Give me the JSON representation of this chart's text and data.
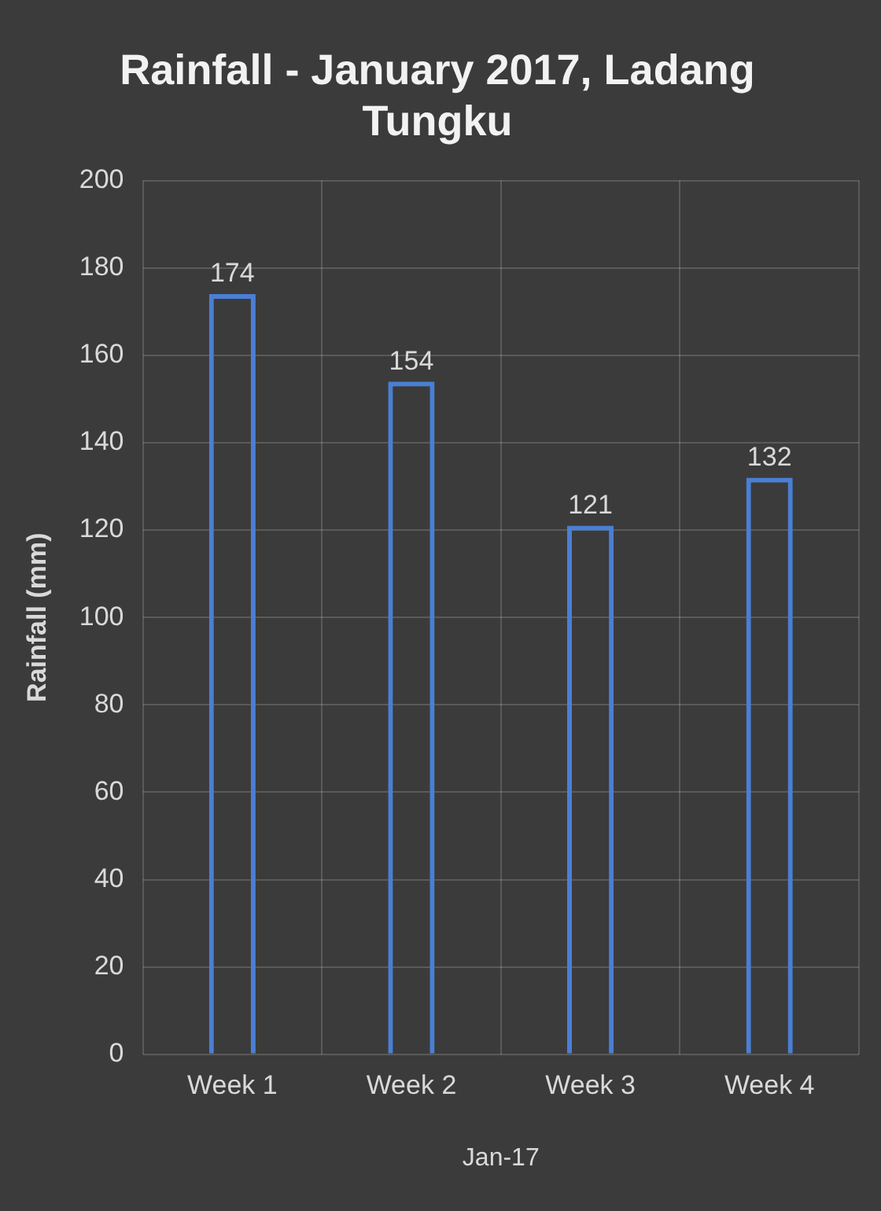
{
  "chart_data": {
    "type": "bar",
    "title": "Rainfall - January 2017, Ladang Tungku",
    "xlabel": "Jan-17",
    "ylabel": "Rainfall (mm)",
    "categories": [
      "Week 1",
      "Week 2",
      "Week 3",
      "Week 4"
    ],
    "values": [
      174,
      154,
      121,
      132
    ],
    "color": "#4a7fd4",
    "ylim": [
      0,
      200
    ],
    "yticks": [
      0,
      20,
      40,
      60,
      80,
      100,
      120,
      140,
      160,
      180,
      200
    ],
    "grid": true,
    "data_labels": true
  }
}
